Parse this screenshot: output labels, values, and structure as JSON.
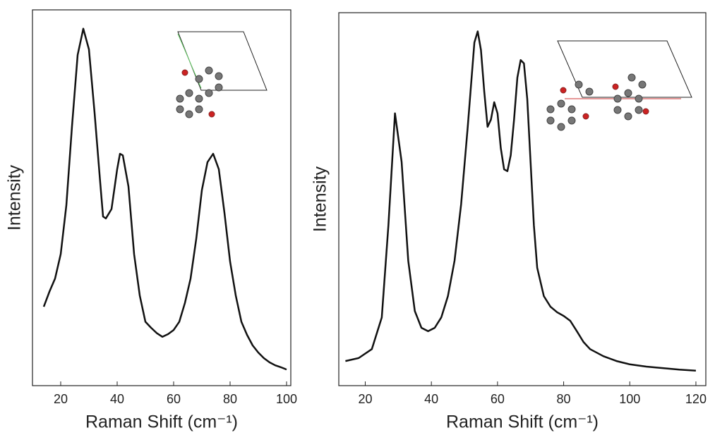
{
  "chart_data": [
    {
      "type": "line",
      "x_label": "Raman Shift (cm⁻¹)",
      "y_label": "Intensity",
      "xlim": [
        10,
        101.5
      ],
      "ylim": [
        0,
        100
      ],
      "xticks": [
        20,
        40,
        60,
        80,
        100
      ],
      "series": [
        {
          "color": "#111111",
          "x": [
            14,
            16,
            18,
            20,
            22,
            24,
            26,
            28,
            30,
            32,
            34,
            35,
            36,
            38,
            40,
            41,
            42,
            44,
            46,
            48,
            50,
            52,
            54,
            56,
            58,
            60,
            62,
            64,
            66,
            68,
            70,
            72,
            74,
            76,
            78,
            80,
            82,
            84,
            86,
            88,
            90,
            92,
            94,
            96,
            98,
            100
          ],
          "values": [
            21,
            25,
            28.5,
            35,
            48,
            69,
            88,
            95,
            89.5,
            72.6,
            54,
            45,
            44.5,
            47,
            57.6,
            61.7,
            61.3,
            53,
            35,
            24,
            17,
            15.4,
            14,
            13,
            13.7,
            14.8,
            17,
            22,
            28.5,
            39,
            52,
            59.5,
            61.7,
            57.6,
            46,
            33,
            24,
            17,
            13.5,
            10.7,
            8.8,
            7.3,
            6.2,
            5.4,
            4.9,
            4.3
          ]
        }
      ]
    },
    {
      "type": "line",
      "x_label": "Raman Shift (cm⁻¹)",
      "y_label": "Intensity",
      "xlim": [
        12,
        123
      ],
      "ylim": [
        0,
        100
      ],
      "xticks": [
        20,
        40,
        60,
        80,
        100,
        120
      ],
      "series": [
        {
          "color": "#111111",
          "x": [
            14,
            18,
            22,
            25,
            27,
            29,
            31,
            33,
            35,
            37,
            39,
            41,
            43,
            45,
            47,
            49,
            51,
            53,
            54,
            55,
            56,
            57,
            58,
            59,
            60,
            61,
            62,
            63,
            64,
            65,
            66,
            67,
            68,
            69,
            70,
            71,
            72,
            74,
            76,
            78,
            80,
            82,
            84,
            86,
            88,
            92,
            96,
            100,
            105,
            110,
            115,
            120
          ],
          "values": [
            6.6,
            7.4,
            9.8,
            18.3,
            43,
            73,
            60,
            33.5,
            20,
            15.5,
            14.6,
            15.5,
            18.3,
            24,
            33.5,
            48.6,
            69.4,
            92,
            95,
            90,
            78.8,
            69.4,
            71.3,
            76,
            73,
            63.7,
            58,
            57.5,
            61.8,
            71.3,
            82.6,
            87.3,
            86.4,
            76.9,
            60,
            43,
            31.6,
            24,
            21.2,
            19.7,
            18.7,
            17.4,
            14.6,
            11.7,
            9.8,
            7.9,
            6.6,
            5.7,
            5.1,
            4.7,
            4.3,
            4
          ]
        }
      ]
    }
  ]
}
